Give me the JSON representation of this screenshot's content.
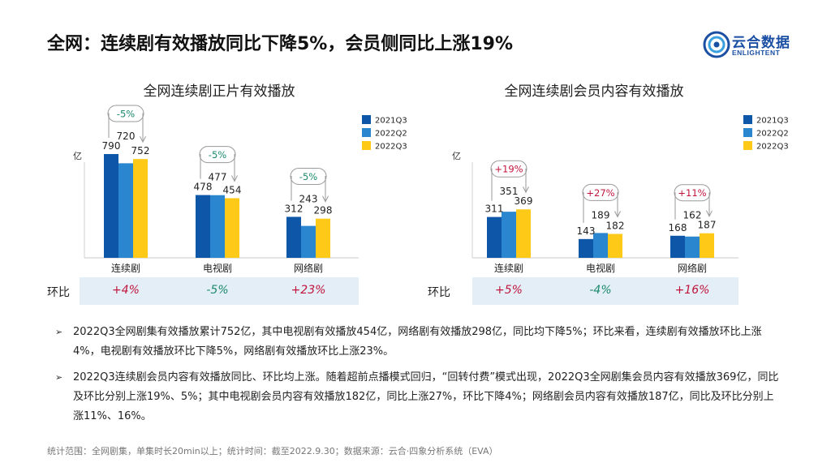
{
  "title": "全网：连续剧有效播放同比下降5%，会员侧同比上涨19%",
  "logo": {
    "cn": "云合数据",
    "en": "ENLIGHTENT"
  },
  "colors": {
    "s1": "#0e56a8",
    "s2": "#2b86d0",
    "s3": "#ffc917",
    "up": "#c0143c",
    "down": "#1a8a6c",
    "row_bg": "#e4eef6"
  },
  "ratio_label": "环比",
  "chart_data": [
    {
      "type": "bar",
      "title": "全网连续剧正片有效播放",
      "ylabel": "亿",
      "categories": [
        "连续剧",
        "电视剧",
        "网络剧"
      ],
      "series": [
        {
          "name": "2021Q3",
          "values": [
            790,
            478,
            312
          ]
        },
        {
          "name": "2022Q2",
          "values": [
            720,
            477,
            243
          ]
        },
        {
          "name": "2022Q3",
          "values": [
            752,
            454,
            298
          ]
        }
      ],
      "yoy": [
        "-5%",
        "-5%",
        "-5%"
      ],
      "qoq": [
        "+4%",
        "-5%",
        "+23%"
      ],
      "ylim": [
        0,
        950
      ]
    },
    {
      "type": "bar",
      "title": "全网连续剧会员内容有效播放",
      "ylabel": "亿",
      "categories": [
        "连续剧",
        "电视剧",
        "网络剧"
      ],
      "series": [
        {
          "name": "2021Q3",
          "values": [
            311,
            143,
            168
          ]
        },
        {
          "name": "2022Q2",
          "values": [
            351,
            189,
            162
          ]
        },
        {
          "name": "2022Q3",
          "values": [
            369,
            182,
            187
          ]
        }
      ],
      "yoy": [
        "+19%",
        "+27%",
        "+11%"
      ],
      "qoq": [
        "+5%",
        "-4%",
        "+16%"
      ],
      "ylim": [
        0,
        950
      ]
    }
  ],
  "bullets": [
    "2022Q3全网剧集有效播放累计752亿，其中电视剧有效播放454亿，网络剧有效播放298亿，同比均下降5%；环比来看，连续剧有效播放环比上涨4%，电视剧有效播放环比下降5%，网络剧有效播放环比上涨23%。",
    "2022Q3连续剧会员内容有效播放同比、环比均上涨。随着超前点播模式回归，“回转付费”模式出现，2022Q3全网剧集会员内容有效播放369亿，同比及环比分别上涨19%、5%；其中电视剧会员内容有效播放182亿，同比上涨27%，环比下降4%；网络剧会员内容有效播放187亿，同比及环比分别上涨11%、16%。"
  ],
  "footnote": "统计范围：全网剧集，单集时长20min以上；统计时间：截至2022.9.30；数据来源：云合·四象分析系统（EVA）"
}
